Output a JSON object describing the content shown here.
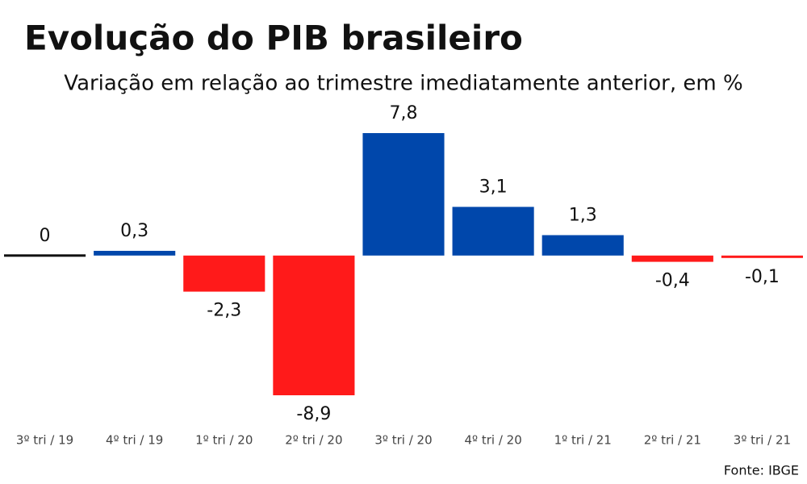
{
  "chart_data": {
    "type": "bar",
    "title": "Evolução do PIB brasileiro",
    "subtitle": "Variação em relação ao trimestre imediatamente anterior, em %",
    "categories": [
      "3º tri / 19",
      "4º tri / 19",
      "1º tri / 20",
      "2º tri / 20",
      "3º tri / 20",
      "4º tri / 20",
      "1º tri / 21",
      "2º tri / 21",
      "3º tri / 21"
    ],
    "values": [
      0,
      0.3,
      -2.3,
      -8.9,
      7.8,
      3.1,
      1.3,
      -0.4,
      -0.1
    ],
    "value_labels": [
      "0",
      "0,3",
      "-2,3",
      "-8,9",
      "7,8",
      "3,1",
      "1,3",
      "-0,4",
      "-0,1"
    ],
    "colors": [
      "#111111",
      "#0047ab",
      "#ff1a1a",
      "#ff1a1a",
      "#0047ab",
      "#0047ab",
      "#0047ab",
      "#ff1a1a",
      "#ff1a1a"
    ],
    "source": "Fonte: IBGE"
  }
}
